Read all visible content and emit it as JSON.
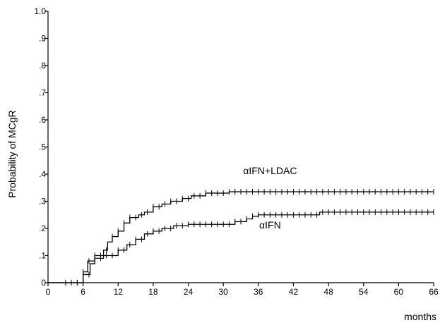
{
  "chart_data": {
    "type": "line",
    "title": "",
    "xlabel": "months",
    "ylabel": "Probability of MCgR",
    "xlim": [
      0,
      66
    ],
    "ylim": [
      0,
      1.0
    ],
    "x_ticks": [
      0,
      6,
      12,
      18,
      24,
      30,
      36,
      42,
      48,
      54,
      60,
      66
    ],
    "x_tick_labels": [
      "0",
      "6",
      "12",
      "18",
      "24",
      "30",
      "36",
      "42",
      "48",
      "54",
      "60",
      "66"
    ],
    "y_ticks": [
      0,
      0.1,
      0.2,
      0.3,
      0.4,
      0.5,
      0.6,
      0.7,
      0.8,
      0.9,
      1.0
    ],
    "y_tick_labels": [
      "0",
      ".1",
      ".2",
      ".3",
      ".4",
      ".5",
      ".6",
      ".7",
      ".8",
      ".9",
      "1.0"
    ],
    "grid": false,
    "step": true,
    "series": [
      {
        "name": "αIFN+LDAC",
        "color": "#000000",
        "points": [
          [
            0,
            0
          ],
          [
            6,
            0
          ],
          [
            6,
            0.04
          ],
          [
            6.8,
            0.04
          ],
          [
            6.8,
            0.08
          ],
          [
            8,
            0.08
          ],
          [
            8,
            0.1
          ],
          [
            9.5,
            0.1
          ],
          [
            9.5,
            0.12
          ],
          [
            10.2,
            0.12
          ],
          [
            10.2,
            0.15
          ],
          [
            11,
            0.15
          ],
          [
            11,
            0.17
          ],
          [
            12,
            0.17
          ],
          [
            12,
            0.19
          ],
          [
            13,
            0.19
          ],
          [
            13,
            0.22
          ],
          [
            14,
            0.22
          ],
          [
            14,
            0.24
          ],
          [
            15.5,
            0.24
          ],
          [
            15.5,
            0.25
          ],
          [
            16.5,
            0.25
          ],
          [
            16.5,
            0.26
          ],
          [
            18,
            0.26
          ],
          [
            18,
            0.28
          ],
          [
            19.5,
            0.28
          ],
          [
            19.5,
            0.29
          ],
          [
            21,
            0.29
          ],
          [
            21,
            0.3
          ],
          [
            23,
            0.3
          ],
          [
            23,
            0.31
          ],
          [
            24.5,
            0.31
          ],
          [
            24.5,
            0.32
          ],
          [
            27,
            0.32
          ],
          [
            27,
            0.33
          ],
          [
            31,
            0.33
          ],
          [
            31,
            0.335
          ],
          [
            66,
            0.335
          ]
        ],
        "censored_x": [
          3,
          4,
          5,
          6,
          7,
          8,
          9,
          10,
          11,
          12,
          13,
          14,
          15,
          16,
          17,
          18,
          19,
          20,
          21,
          22,
          23,
          24,
          25,
          26,
          27,
          28,
          29,
          30,
          31,
          32,
          33,
          34,
          35,
          36,
          37,
          38,
          39,
          40,
          41,
          42,
          43,
          44,
          45,
          46,
          47,
          48,
          49,
          50,
          51,
          52,
          53,
          54,
          55,
          56,
          57,
          58,
          59,
          60,
          61,
          62,
          63,
          64,
          65,
          66
        ],
        "label": "αIFN+LDAC",
        "label_at": [
          38,
          0.4
        ]
      },
      {
        "name": "αIFN",
        "color": "#000000",
        "points": [
          [
            0,
            0
          ],
          [
            6,
            0
          ],
          [
            6,
            0.03
          ],
          [
            7.2,
            0.03
          ],
          [
            7.2,
            0.07
          ],
          [
            8,
            0.07
          ],
          [
            8,
            0.09
          ],
          [
            9.5,
            0.09
          ],
          [
            9.5,
            0.1
          ],
          [
            12,
            0.1
          ],
          [
            12,
            0.12
          ],
          [
            13.5,
            0.12
          ],
          [
            13.5,
            0.14
          ],
          [
            15,
            0.14
          ],
          [
            15,
            0.16
          ],
          [
            16.5,
            0.16
          ],
          [
            16.5,
            0.18
          ],
          [
            18,
            0.18
          ],
          [
            18,
            0.19
          ],
          [
            19.5,
            0.19
          ],
          [
            19.5,
            0.2
          ],
          [
            21.5,
            0.2
          ],
          [
            21.5,
            0.21
          ],
          [
            24,
            0.21
          ],
          [
            24,
            0.215
          ],
          [
            32,
            0.215
          ],
          [
            32,
            0.225
          ],
          [
            34,
            0.225
          ],
          [
            34,
            0.235
          ],
          [
            35,
            0.235
          ],
          [
            35,
            0.245
          ],
          [
            36,
            0.245
          ],
          [
            36,
            0.25
          ],
          [
            46.5,
            0.25
          ],
          [
            46.5,
            0.26
          ],
          [
            66,
            0.26
          ]
        ],
        "censored_x": [
          5,
          6,
          7,
          8,
          9,
          10,
          11,
          12,
          13,
          14,
          15,
          16,
          17,
          18,
          19,
          20,
          21,
          22,
          23,
          24,
          25,
          26,
          27,
          28,
          29,
          30,
          31,
          32,
          33,
          34,
          35,
          36,
          37,
          38,
          39,
          40,
          41,
          42,
          43,
          44,
          45,
          46,
          47,
          48,
          49,
          50,
          51,
          52,
          53,
          54,
          55,
          56,
          57,
          58,
          59,
          60,
          61,
          62,
          63,
          64,
          65,
          66
        ],
        "label": "αIFN",
        "label_at": [
          38,
          0.2
        ]
      }
    ]
  }
}
